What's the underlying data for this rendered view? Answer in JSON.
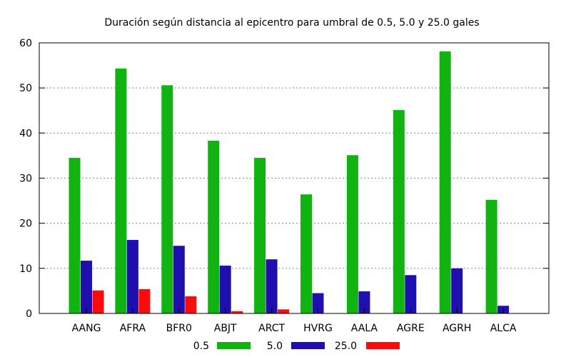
{
  "chart_data": {
    "type": "bar",
    "title": "Duración según distancia al epicentro para umbral de 0.5, 5.0 y 25.0 gales",
    "xlabel": "",
    "ylabel": "",
    "ylim": [
      0,
      60
    ],
    "yticks": [
      0,
      10,
      20,
      30,
      40,
      50,
      60
    ],
    "grid": true,
    "legend_position": "bottom",
    "categories": [
      "AANG",
      "AFRA",
      "BFR0",
      "ABJT",
      "ARCT",
      "HVRG",
      "AALA",
      "AGRE",
      "AGRH",
      "ALCA"
    ],
    "series": [
      {
        "name": "0.5",
        "color": "#11b311",
        "values": [
          34.5,
          54.3,
          50.6,
          38.3,
          34.5,
          26.4,
          35.1,
          45.1,
          58.1,
          25.2
        ]
      },
      {
        "name": "5.0",
        "color": "#1f0fae",
        "values": [
          11.7,
          16.3,
          15.0,
          10.6,
          12.0,
          4.5,
          4.9,
          8.5,
          10.0,
          1.7
        ]
      },
      {
        "name": "25.0",
        "color": "#ff0a0a",
        "values": [
          5.1,
          5.4,
          3.8,
          0.5,
          0.9,
          0,
          0,
          0,
          0,
          0
        ]
      }
    ]
  }
}
